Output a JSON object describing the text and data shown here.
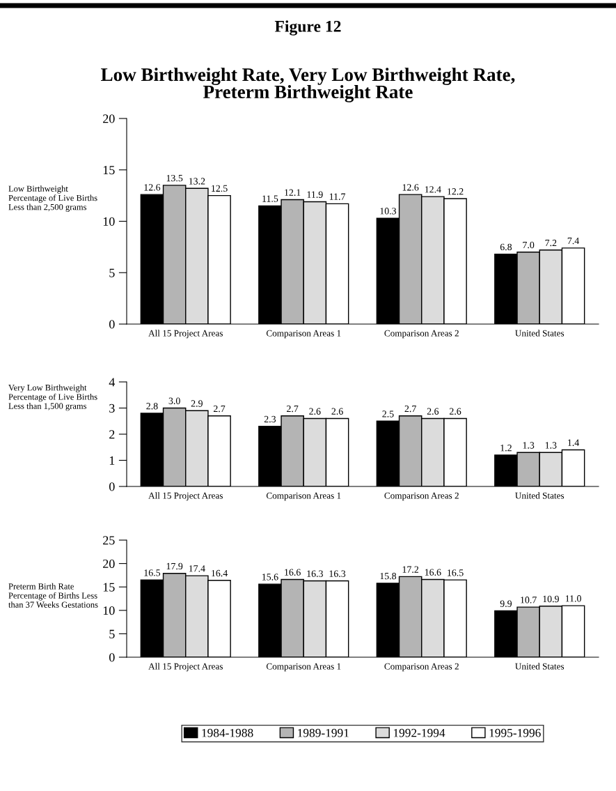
{
  "chart_data": [
    {
      "type": "bar",
      "title": "Figure 12",
      "subtitle": "Low Birthweight Rate, Very Low Birthweight Rate,\nPreterm Birthweight Rate",
      "ylabel": "Low Birthweight\nPercentage of Live Births\nLess than 2,500 grams",
      "categories": [
        "All 15 Project Areas",
        "Comparison Areas 1",
        "Comparison Areas 2",
        "United States"
      ],
      "ylim": [
        0,
        20
      ],
      "yticks": [
        0,
        5,
        10,
        15,
        20
      ],
      "grid": false,
      "series": [
        {
          "color": "#000000",
          "values": [
            12.6,
            11.5,
            10.3,
            6.8
          ],
          "value_labels": [
            "12.6",
            "11.5",
            "10.3",
            "6.8"
          ]
        },
        {
          "color": "#b4b4b4",
          "values": [
            13.5,
            12.1,
            12.6,
            7.0
          ],
          "value_labels": [
            "13.5",
            "12.1",
            "12.6",
            "7.0"
          ]
        },
        {
          "color": "#dcdcdc",
          "values": [
            13.2,
            11.9,
            12.4,
            7.2
          ],
          "value_labels": [
            "13.2",
            "11.9",
            "12.4",
            "7.2"
          ]
        },
        {
          "color": "#ffffff",
          "values": [
            12.5,
            11.7,
            12.2,
            7.4
          ],
          "value_labels": [
            "12.5",
            "11.7",
            "12.2",
            "7.4"
          ]
        }
      ]
    },
    {
      "type": "bar",
      "ylabel": "Very Low Birthweight\nPercentage of Live Births\nLess than 1,500 grams",
      "categories": [
        "All 15 Project Areas",
        "Comparison Areas 1",
        "Comparison Areas 2",
        "United States"
      ],
      "ylim": [
        0,
        4
      ],
      "yticks": [
        0,
        1,
        2,
        3,
        4
      ],
      "grid": false,
      "series": [
        {
          "color": "#000000",
          "values": [
            2.8,
            2.3,
            2.5,
            1.2
          ],
          "value_labels": [
            "2.8",
            "2.3",
            "2.5",
            "1.2"
          ]
        },
        {
          "color": "#b4b4b4",
          "values": [
            3.0,
            2.7,
            2.7,
            1.3
          ],
          "value_labels": [
            "3.0",
            "2.7",
            "2.7",
            "1.3"
          ]
        },
        {
          "color": "#dcdcdc",
          "values": [
            2.9,
            2.6,
            2.6,
            1.3
          ],
          "value_labels": [
            "2.9",
            "2.6",
            "2.6",
            "1.3"
          ]
        },
        {
          "color": "#ffffff",
          "values": [
            2.7,
            2.6,
            2.6,
            1.4
          ],
          "value_labels": [
            "2.7",
            "2.6",
            "2.6",
            "1.4"
          ]
        }
      ]
    },
    {
      "type": "bar",
      "ylabel": "Preterm Birth Rate\nPercentage of Births Less\nthan 37 Weeks Gestations",
      "categories": [
        "All 15 Project Areas",
        "Comparison Areas 1",
        "Comparison Areas 2",
        "United States"
      ],
      "ylim": [
        0,
        25
      ],
      "yticks": [
        0,
        5,
        10,
        15,
        20,
        25
      ],
      "grid": false,
      "legend": "bottom",
      "series": [
        {
          "name": "1984-1988",
          "color": "#000000",
          "values": [
            16.5,
            15.6,
            15.8,
            9.9
          ],
          "value_labels": [
            "16.5",
            "15.6",
            "15.8",
            "9.9"
          ]
        },
        {
          "name": "1989-1991",
          "color": "#b4b4b4",
          "values": [
            17.9,
            16.6,
            17.2,
            10.7
          ],
          "value_labels": [
            "17.9",
            "16.6",
            "17.2",
            "10.7"
          ]
        },
        {
          "name": "1992-1994",
          "color": "#dcdcdc",
          "values": [
            17.4,
            16.3,
            16.6,
            10.9
          ],
          "value_labels": [
            "17.4",
            "16.3",
            "16.6",
            "10.9"
          ]
        },
        {
          "name": "1995-1996",
          "color": "#ffffff",
          "values": [
            16.4,
            16.3,
            16.5,
            11.0
          ],
          "value_labels": [
            "16.4",
            "16.3",
            "16.5",
            "11.0"
          ]
        }
      ]
    }
  ]
}
